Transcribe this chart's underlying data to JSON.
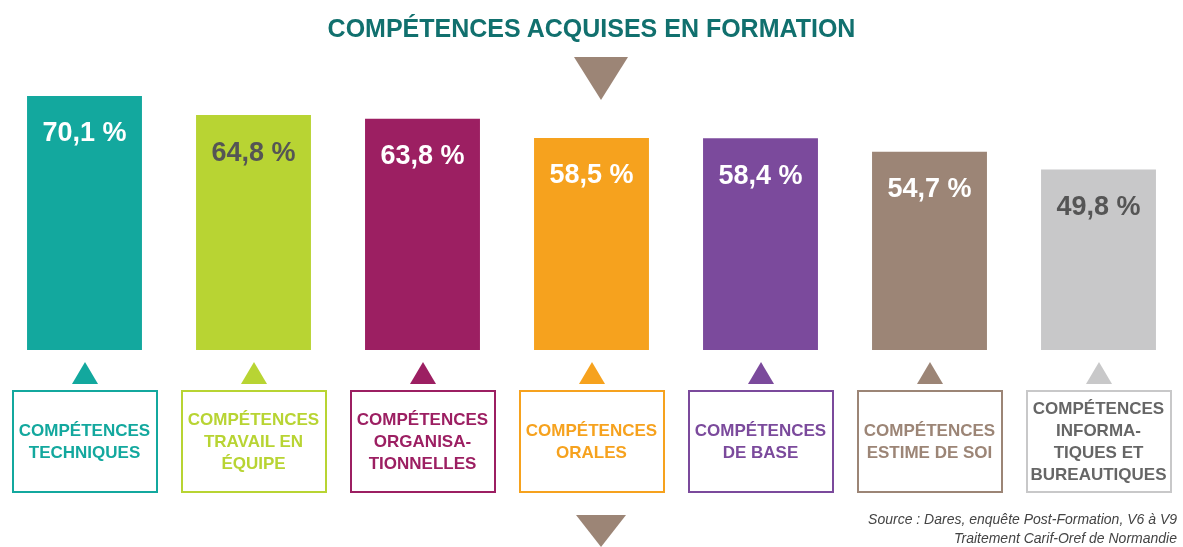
{
  "chart_data": {
    "type": "bar",
    "title": "COMPÉTENCES ACQUISES EN FORMATION",
    "categories": [
      "COMPÉTENCES TECHNIQUES",
      "COMPÉTENCES TRAVAIL EN ÉQUIPE",
      "COMPÉTENCES ORGANISA-TIONNELLES",
      "COMPÉTENCES ORALES",
      "COMPÉTENCES DE BASE",
      "COMPÉTENCES ESTIME DE SOI",
      "COMPÉTENCES INFORMA-TIQUES ET BUREAUTIQUES"
    ],
    "values": [
      70.1,
      64.8,
      63.8,
      58.5,
      58.4,
      54.7,
      49.8
    ],
    "value_labels": [
      "70,1 %",
      "64,8 %",
      "63,8 %",
      "58,5 %",
      "58,4 %",
      "54,7 %",
      "49,8 %"
    ],
    "colors": [
      "#13a89e",
      "#b8d433",
      "#9c1f62",
      "#f6a21e",
      "#7b4a9c",
      "#9c8576",
      "#c8c8c9"
    ],
    "annotations": [
      "Source : Dares, enquête Post-Formation, V6 à V9",
      "Traitement Carif-Oref de Normandie"
    ]
  }
}
